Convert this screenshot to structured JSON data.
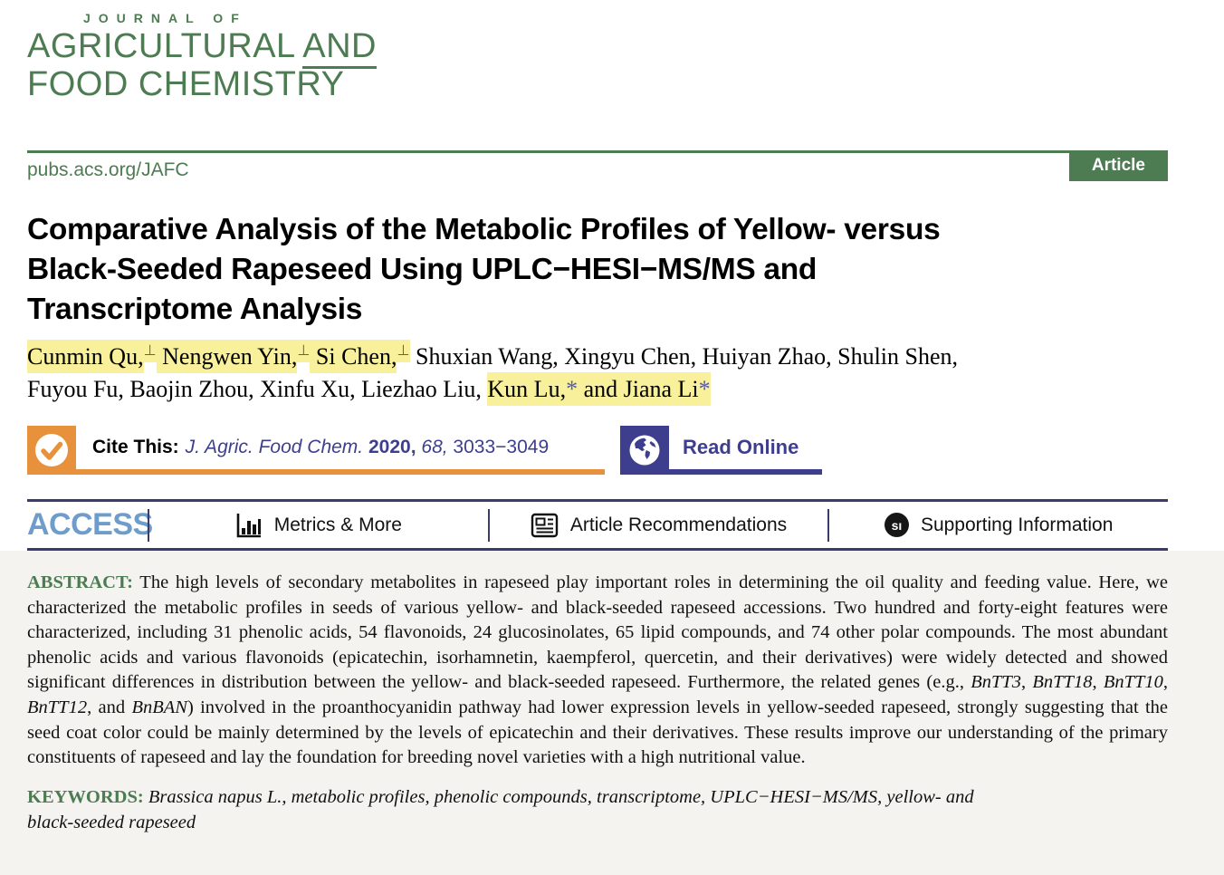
{
  "journal": {
    "name_line1": "JOURNAL OF",
    "name_line2": "AGRICULTURAL ",
    "name_line2_and": "AND",
    "name_line3": "FOOD CHEMISTRY",
    "url": "pubs.acs.org/JAFC",
    "badge": "Article"
  },
  "title": {
    "lines": {
      "0": "Comparative Analysis of the Metabolic Profiles of Yellow- versus",
      "1": "Black-Seeded Rapeseed Using UPLC−HESI−MS/MS and",
      "2": "Transcriptome Analysis"
    }
  },
  "authors": {
    "segments": [
      {
        "t": "Cunmin Qu,",
        "c": "hl"
      },
      {
        "t": "⊥",
        "c": "hl sup blue"
      },
      {
        "t": " Nengwen Yin,",
        "c": "hl"
      },
      {
        "t": "⊥",
        "c": "hl sup blue"
      },
      {
        "t": " Si Chen,",
        "c": "hl"
      },
      {
        "t": "⊥",
        "c": "hl sup blue"
      },
      {
        "t": " Shuxian Wang, Xingyu Chen, Huiyan Zhao, Shulin Shen,",
        "c": ""
      },
      {
        "br": true
      },
      {
        "t": "Fuyou Fu, Baojin Zhou, Xinfu Xu, Liezhao Liu, ",
        "c": ""
      },
      {
        "t": "Kun Lu,",
        "c": "hl"
      },
      {
        "t": "*",
        "c": "hl blue"
      },
      {
        "t": " and Jiana Li",
        "c": "hl"
      },
      {
        "t": "*",
        "c": "hl blue"
      }
    ]
  },
  "cite": {
    "label": "Cite This:",
    "ref_segments": [
      {
        "t": "J. Agric. Food Chem.",
        "c": "it"
      },
      {
        "t": " ",
        "c": ""
      },
      {
        "t": "2020,",
        "c": "bold"
      },
      {
        "t": " ",
        "c": ""
      },
      {
        "t": "68,",
        "c": "it"
      },
      {
        "t": " 3033−3049",
        "c": ""
      }
    ],
    "read_online": "Read Online"
  },
  "access": {
    "label": "ACCESS",
    "items": {
      "metrics": "Metrics & More",
      "recommendations": "Article Recommendations",
      "supporting": "Supporting Information"
    },
    "si_glyph": "sı"
  },
  "abstract": {
    "label": "ABSTRACT:",
    "segments": [
      {
        "t": "  The high levels of secondary metabolites in rapeseed play important roles in determining the oil quality and feeding value. Here, we characterized the metabolic profiles in seeds of various yellow- and black-seeded rapeseed accessions. Two hundred and forty-eight features were characterized, including 31 phenolic acids, 54 flavonoids, 24 glucosinolates, 65 lipid compounds, and 74 other polar compounds. The most abundant phenolic acids and various flavonoids (epicatechin, isorhamnetin, kaempferol, quercetin, and their derivatives) were widely detected and showed significant differences in distribution between the yellow- and black-seeded rapeseed. Furthermore, the related genes (e.g., ",
        "c": ""
      },
      {
        "t": "BnTT3",
        "c": "it"
      },
      {
        "t": ", ",
        "c": ""
      },
      {
        "t": "BnTT18",
        "c": "it"
      },
      {
        "t": ", ",
        "c": ""
      },
      {
        "t": "BnTT10",
        "c": "it"
      },
      {
        "t": ", ",
        "c": ""
      },
      {
        "t": "BnTT12",
        "c": "it"
      },
      {
        "t": ", and ",
        "c": ""
      },
      {
        "t": "BnBAN",
        "c": "it"
      },
      {
        "t": ") involved in the proanthocyanidin pathway had lower expression levels in yellow-seeded rapeseed, strongly suggesting that the seed coat color could be mainly determined by the levels of epicatechin and their derivatives. These results improve our understanding of the primary constituents of rapeseed and lay the foundation for breeding novel varieties with a high nutritional value.",
        "c": ""
      }
    ]
  },
  "keywords": {
    "label": "KEYWORDS:",
    "text": " Brassica napus L., metabolic profiles, phenolic compounds, transcriptome, UPLC−HESI−MS/MS, yellow- and black-seeded rapeseed"
  },
  "colors": {
    "journal_green": "#4d7b52",
    "cite_orange": "#e8913d",
    "link_indigo": "#3e3e8f",
    "rule_navy": "#3b3b6d",
    "access_blue": "#6e9ccb",
    "highlight_yellow": "#f8f09a",
    "abstract_bg": "#f4f3f0"
  }
}
